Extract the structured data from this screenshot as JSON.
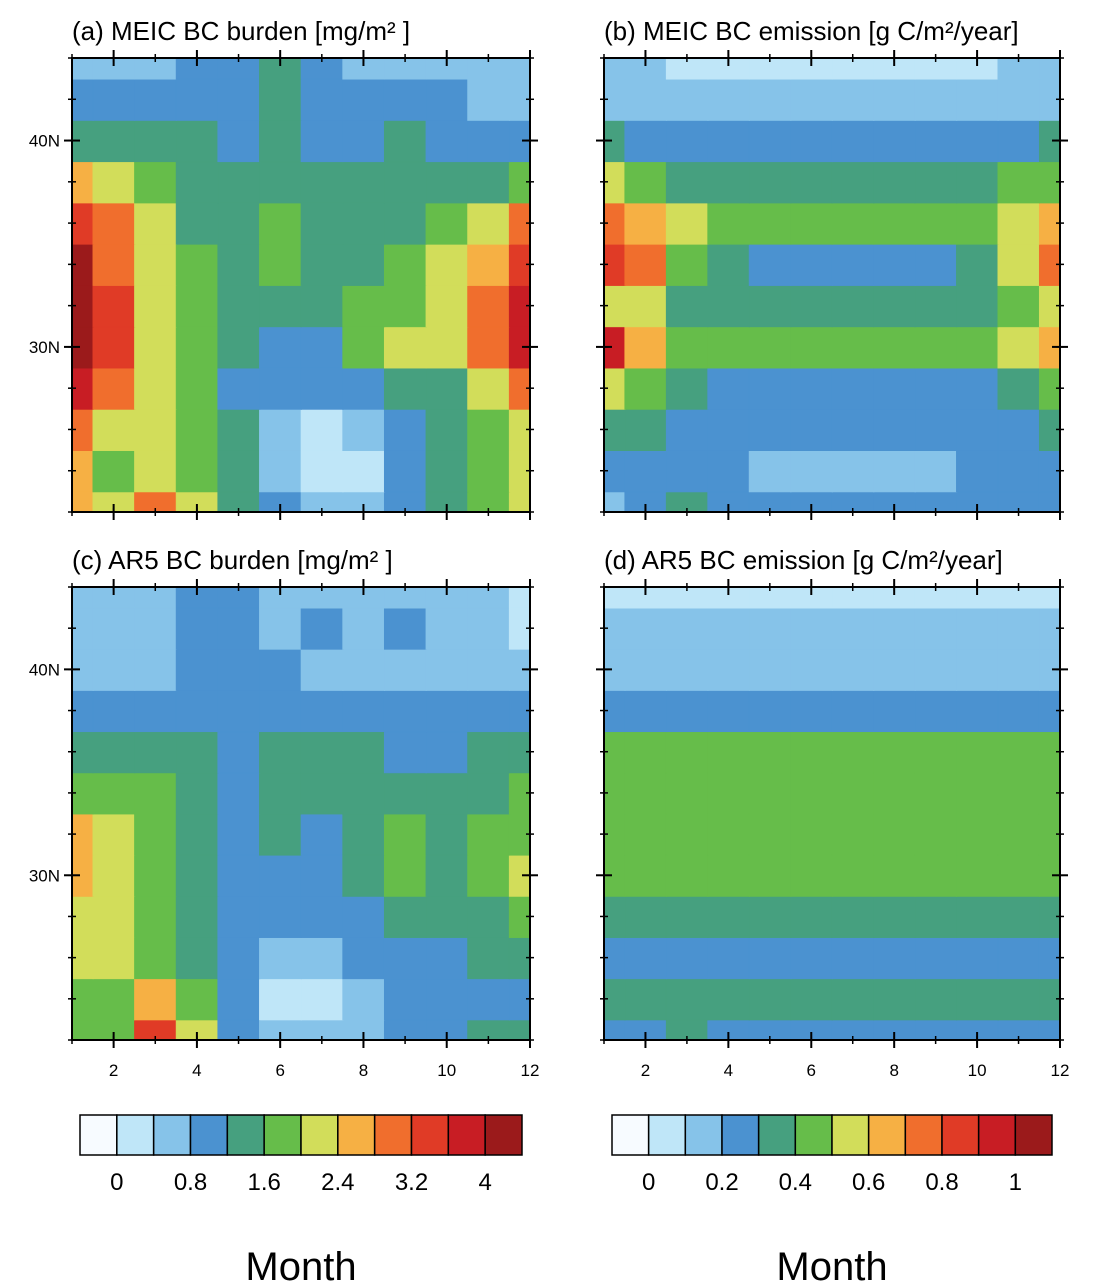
{
  "chart_data": [
    {
      "type": "contour",
      "title": "(a) MEIC BC burden [mg/m² ]",
      "x": [
        1,
        2,
        3,
        4,
        5,
        6,
        7,
        8,
        9,
        10,
        11,
        12
      ],
      "y": [
        22,
        24,
        26,
        28,
        30,
        32,
        34,
        36,
        38,
        40,
        42,
        44
      ],
      "z": [
        [
          2.6,
          2.2,
          3.0,
          2.0,
          1.4,
          0.9,
          0.7,
          0.7,
          1.0,
          1.3,
          1.7,
          2.1
        ],
        [
          2.7,
          1.9,
          2.3,
          1.8,
          1.3,
          0.5,
          0.3,
          0.3,
          0.9,
          1.3,
          1.7,
          2.1
        ],
        [
          3.0,
          2.2,
          2.1,
          1.7,
          1.2,
          0.5,
          0.3,
          0.4,
          0.9,
          1.2,
          1.7,
          2.3
        ],
        [
          3.8,
          2.9,
          2.2,
          1.8,
          1.1,
          0.9,
          0.9,
          1.0,
          1.3,
          1.5,
          2.1,
          3.0
        ],
        [
          4.3,
          3.2,
          2.3,
          1.8,
          1.3,
          1.0,
          1.1,
          1.6,
          2.0,
          2.3,
          2.9,
          3.8
        ],
        [
          4.4,
          3.2,
          2.3,
          1.7,
          1.4,
          1.2,
          1.3,
          1.7,
          1.9,
          2.2,
          2.9,
          3.6
        ],
        [
          4.2,
          3.1,
          2.2,
          1.6,
          1.3,
          1.6,
          1.4,
          1.5,
          1.8,
          2.1,
          2.7,
          3.4
        ],
        [
          3.4,
          2.8,
          2.1,
          1.5,
          1.3,
          1.7,
          1.3,
          1.4,
          1.5,
          1.8,
          2.2,
          2.8
        ],
        [
          2.4,
          2.0,
          1.6,
          1.3,
          1.2,
          1.4,
          1.3,
          1.2,
          1.3,
          1.3,
          1.5,
          1.7
        ],
        [
          1.4,
          1.4,
          1.3,
          1.2,
          1.1,
          1.2,
          1.0,
          1.1,
          1.2,
          1.0,
          0.9,
          0.9
        ],
        [
          0.8,
          1.0,
          1.0,
          1.1,
          1.0,
          1.2,
          0.9,
          1.0,
          0.9,
          0.8,
          0.7,
          0.7
        ],
        [
          0.6,
          0.6,
          0.7,
          0.8,
          0.9,
          1.3,
          0.9,
          0.7,
          0.7,
          0.6,
          0.6,
          0.6
        ]
      ],
      "xlim": [
        1,
        12
      ],
      "ylim": [
        22,
        44
      ],
      "xticks": [
        2,
        4,
        6,
        8,
        10,
        12
      ],
      "xtick_labels": false,
      "yticks": [
        {
          "value": 30,
          "label": "30N"
        },
        {
          "value": 40,
          "label": "40N"
        }
      ],
      "xminor": [
        1,
        2,
        3,
        4,
        5,
        6,
        7,
        8,
        9,
        10,
        11,
        12
      ],
      "yminor": [
        22,
        24,
        26,
        28,
        30,
        32,
        34,
        36,
        38,
        40,
        42,
        44
      ],
      "levels": [
        0,
        0.4,
        0.8,
        1.2,
        1.6,
        2.0,
        2.4,
        2.8,
        3.2,
        3.6,
        4.0
      ],
      "colors": [
        "#f7fbff",
        "#bfe6f8",
        "#86c3e9",
        "#4b92d0",
        "#46a07f",
        "#66bd4a",
        "#d2dd5a",
        "#f6b044",
        "#f06e2d",
        "#e03b26",
        "#c81d24",
        "#9b1a1b"
      ]
    },
    {
      "type": "contour",
      "title": "(b) MEIC BC emission [g C/m²/year]",
      "x": [
        1,
        2,
        3,
        4,
        5,
        6,
        7,
        8,
        9,
        10,
        11,
        12
      ],
      "y": [
        22,
        24,
        26,
        28,
        30,
        32,
        34,
        36,
        38,
        40,
        42,
        44
      ],
      "z": [
        [
          0.15,
          0.2,
          0.32,
          0.2,
          0.2,
          0.2,
          0.2,
          0.2,
          0.2,
          0.2,
          0.2,
          0.25
        ],
        [
          0.2,
          0.2,
          0.2,
          0.2,
          0.15,
          0.15,
          0.15,
          0.15,
          0.15,
          0.2,
          0.2,
          0.2
        ],
        [
          0.35,
          0.3,
          0.25,
          0.2,
          0.2,
          0.2,
          0.2,
          0.2,
          0.2,
          0.2,
          0.25,
          0.3
        ],
        [
          0.55,
          0.45,
          0.35,
          0.25,
          0.25,
          0.25,
          0.25,
          0.25,
          0.25,
          0.25,
          0.35,
          0.45
        ],
        [
          0.95,
          0.65,
          0.45,
          0.45,
          0.45,
          0.45,
          0.45,
          0.45,
          0.45,
          0.45,
          0.55,
          0.65
        ],
        [
          0.55,
          0.5,
          0.35,
          0.35,
          0.35,
          0.35,
          0.35,
          0.35,
          0.35,
          0.35,
          0.45,
          0.5
        ],
        [
          0.85,
          0.75,
          0.45,
          0.35,
          0.25,
          0.25,
          0.25,
          0.25,
          0.25,
          0.35,
          0.5,
          0.75
        ],
        [
          0.75,
          0.65,
          0.55,
          0.45,
          0.45,
          0.45,
          0.45,
          0.45,
          0.45,
          0.45,
          0.55,
          0.65
        ],
        [
          0.55,
          0.45,
          0.35,
          0.35,
          0.35,
          0.35,
          0.35,
          0.35,
          0.35,
          0.35,
          0.4,
          0.45
        ],
        [
          0.35,
          0.25,
          0.25,
          0.25,
          0.25,
          0.25,
          0.25,
          0.25,
          0.25,
          0.25,
          0.25,
          0.35
        ],
        [
          0.15,
          0.15,
          0.15,
          0.15,
          0.15,
          0.15,
          0.15,
          0.15,
          0.15,
          0.15,
          0.15,
          0.15
        ],
        [
          0.15,
          0.15,
          0.05,
          0.05,
          0.05,
          0.05,
          0.05,
          0.05,
          0.05,
          0.05,
          0.15,
          0.15
        ]
      ],
      "xlim": [
        1,
        12
      ],
      "ylim": [
        22,
        44
      ],
      "xticks": [
        2,
        4,
        6,
        8,
        10,
        12
      ],
      "xtick_labels": false,
      "yticks": [
        30,
        40
      ],
      "ytick_labels": false,
      "xminor": [
        1,
        2,
        3,
        4,
        5,
        6,
        7,
        8,
        9,
        10,
        11,
        12
      ],
      "yminor": [
        22,
        24,
        26,
        28,
        30,
        32,
        34,
        36,
        38,
        40,
        42,
        44
      ],
      "levels": [
        0,
        0.1,
        0.2,
        0.3,
        0.4,
        0.5,
        0.6,
        0.7,
        0.8,
        0.9,
        1.0
      ],
      "colors": [
        "#f7fbff",
        "#bfe6f8",
        "#86c3e9",
        "#4b92d0",
        "#46a07f",
        "#66bd4a",
        "#d2dd5a",
        "#f6b044",
        "#f06e2d",
        "#e03b26",
        "#c81d24",
        "#9b1a1b"
      ]
    },
    {
      "type": "contour",
      "title": "(c) AR5 BC burden [mg/m² ]",
      "xlabel": "Month",
      "x": [
        1,
        2,
        3,
        4,
        5,
        6,
        7,
        8,
        9,
        10,
        11,
        12
      ],
      "y": [
        22,
        24,
        26,
        28,
        30,
        32,
        34,
        36,
        38,
        40,
        42,
        44
      ],
      "z": [
        [
          1.8,
          1.7,
          3.5,
          2.0,
          1.0,
          0.4,
          0.4,
          0.6,
          0.9,
          1.1,
          1.3,
          1.4
        ],
        [
          1.8,
          1.9,
          2.5,
          1.9,
          0.9,
          0.3,
          0.3,
          0.6,
          0.9,
          1.0,
          1.0,
          1.1
        ],
        [
          2.1,
          2.1,
          1.9,
          1.5,
          0.9,
          0.5,
          0.5,
          0.9,
          0.9,
          1.0,
          1.2,
          1.3
        ],
        [
          2.3,
          2.2,
          1.9,
          1.3,
          1.0,
          1.0,
          0.9,
          1.1,
          1.3,
          1.3,
          1.5,
          1.6
        ],
        [
          2.7,
          2.2,
          1.8,
          1.3,
          1.0,
          1.0,
          1.1,
          1.4,
          1.7,
          1.5,
          1.8,
          2.1
        ],
        [
          2.4,
          2.1,
          1.7,
          1.3,
          0.9,
          1.2,
          1.1,
          1.5,
          1.7,
          1.4,
          1.7,
          1.9
        ],
        [
          1.8,
          1.7,
          1.6,
          1.3,
          0.9,
          1.4,
          1.2,
          1.3,
          1.3,
          1.3,
          1.4,
          1.6
        ],
        [
          1.3,
          1.5,
          1.4,
          1.2,
          1.0,
          1.3,
          1.2,
          1.2,
          1.1,
          1.1,
          1.2,
          1.3
        ],
        [
          0.9,
          1.0,
          0.9,
          1.0,
          0.9,
          1.0,
          1.0,
          1.0,
          0.9,
          0.9,
          0.9,
          0.9
        ],
        [
          0.6,
          0.7,
          0.7,
          0.9,
          0.8,
          0.8,
          0.7,
          0.6,
          0.7,
          0.6,
          0.5,
          0.4
        ],
        [
          0.5,
          0.6,
          0.7,
          1.0,
          0.9,
          0.7,
          0.9,
          0.5,
          0.9,
          0.5,
          0.4,
          0.3
        ],
        [
          0.4,
          0.5,
          0.6,
          0.8,
          0.8,
          0.6,
          0.6,
          0.6,
          0.6,
          0.5,
          0.4,
          0.3
        ]
      ],
      "xlim": [
        1,
        12
      ],
      "ylim": [
        22,
        44
      ],
      "xticks": [
        2,
        4,
        6,
        8,
        10,
        12
      ],
      "yticks": [
        {
          "value": 30,
          "label": "30N"
        },
        {
          "value": 40,
          "label": "40N"
        }
      ],
      "xminor": [
        1,
        2,
        3,
        4,
        5,
        6,
        7,
        8,
        9,
        10,
        11,
        12
      ],
      "yminor": [
        22,
        24,
        26,
        28,
        30,
        32,
        34,
        36,
        38,
        40,
        42,
        44
      ],
      "levels": [
        0,
        0.4,
        0.8,
        1.2,
        1.6,
        2.0,
        2.4,
        2.8,
        3.2,
        3.6,
        4.0
      ],
      "colorbar_ticks": [
        0,
        0.8,
        1.6,
        2.4,
        3.2,
        4
      ],
      "colors": [
        "#f7fbff",
        "#bfe6f8",
        "#86c3e9",
        "#4b92d0",
        "#46a07f",
        "#66bd4a",
        "#d2dd5a",
        "#f6b044",
        "#f06e2d",
        "#e03b26",
        "#c81d24",
        "#9b1a1b"
      ]
    },
    {
      "type": "contour",
      "title": "(d) AR5 BC emission [g C/m²/year]",
      "xlabel": "Month",
      "x": [
        1,
        2,
        3,
        4,
        5,
        6,
        7,
        8,
        9,
        10,
        11,
        12
      ],
      "y": [
        22,
        24,
        26,
        28,
        30,
        32,
        34,
        36,
        38,
        40,
        42,
        44
      ],
      "z": [
        [
          0.25,
          0.25,
          0.35,
          0.25,
          0.25,
          0.25,
          0.25,
          0.25,
          0.25,
          0.25,
          0.25,
          0.25
        ],
        [
          0.35,
          0.35,
          0.35,
          0.35,
          0.35,
          0.35,
          0.35,
          0.35,
          0.35,
          0.35,
          0.35,
          0.35
        ],
        [
          0.25,
          0.25,
          0.25,
          0.25,
          0.25,
          0.25,
          0.25,
          0.25,
          0.25,
          0.25,
          0.25,
          0.25
        ],
        [
          0.35,
          0.35,
          0.35,
          0.35,
          0.35,
          0.35,
          0.35,
          0.35,
          0.35,
          0.35,
          0.35,
          0.35
        ],
        [
          0.45,
          0.45,
          0.45,
          0.45,
          0.45,
          0.45,
          0.45,
          0.45,
          0.45,
          0.45,
          0.45,
          0.45
        ],
        [
          0.45,
          0.45,
          0.45,
          0.45,
          0.45,
          0.45,
          0.45,
          0.45,
          0.45,
          0.45,
          0.45,
          0.45
        ],
        [
          0.45,
          0.45,
          0.45,
          0.45,
          0.45,
          0.45,
          0.45,
          0.45,
          0.45,
          0.45,
          0.45,
          0.45
        ],
        [
          0.45,
          0.45,
          0.45,
          0.45,
          0.45,
          0.45,
          0.45,
          0.45,
          0.45,
          0.45,
          0.45,
          0.45
        ],
        [
          0.25,
          0.25,
          0.25,
          0.25,
          0.25,
          0.25,
          0.25,
          0.25,
          0.25,
          0.25,
          0.25,
          0.25
        ],
        [
          0.15,
          0.15,
          0.15,
          0.15,
          0.15,
          0.15,
          0.15,
          0.15,
          0.15,
          0.15,
          0.15,
          0.15
        ],
        [
          0.15,
          0.15,
          0.15,
          0.15,
          0.15,
          0.15,
          0.15,
          0.15,
          0.15,
          0.15,
          0.15,
          0.15
        ],
        [
          0.05,
          0.05,
          0.05,
          0.05,
          0.05,
          0.05,
          0.05,
          0.05,
          0.05,
          0.05,
          0.05,
          0.05
        ]
      ],
      "xlim": [
        1,
        12
      ],
      "ylim": [
        22,
        44
      ],
      "xticks": [
        2,
        4,
        6,
        8,
        10,
        12
      ],
      "yticks": [
        30,
        40
      ],
      "ytick_labels": false,
      "xminor": [
        1,
        2,
        3,
        4,
        5,
        6,
        7,
        8,
        9,
        10,
        11,
        12
      ],
      "yminor": [
        22,
        24,
        26,
        28,
        30,
        32,
        34,
        36,
        38,
        40,
        42,
        44
      ],
      "levels": [
        0,
        0.1,
        0.2,
        0.3,
        0.4,
        0.5,
        0.6,
        0.7,
        0.8,
        0.9,
        1.0
      ],
      "colorbar_ticks": [
        0,
        0.2,
        0.4,
        0.6,
        0.8,
        1
      ],
      "colors": [
        "#f7fbff",
        "#bfe6f8",
        "#86c3e9",
        "#4b92d0",
        "#46a07f",
        "#66bd4a",
        "#d2dd5a",
        "#f6b044",
        "#f06e2d",
        "#e03b26",
        "#c81d24",
        "#9b1a1b"
      ]
    }
  ]
}
